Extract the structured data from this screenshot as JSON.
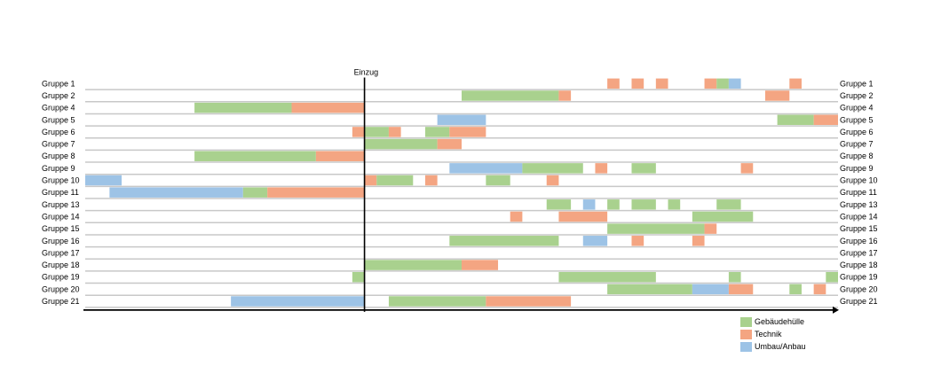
{
  "chart_data": {
    "type": "gantt",
    "marker_label": "Einzug",
    "categories": [
      "Gruppe 1",
      "Gruppe 2",
      "Gruppe 4",
      "Gruppe 5",
      "Gruppe 6",
      "Gruppe 7",
      "Gruppe 8",
      "Gruppe 9",
      "Gruppe 10",
      "Gruppe 11",
      "Gruppe 13",
      "Gruppe 14",
      "Gruppe 15",
      "Gruppe 16",
      "Gruppe 17",
      "Gruppe 18",
      "Gruppe 19",
      "Gruppe 20",
      "Gruppe 21"
    ],
    "marker_position": 23,
    "x_range": [
      0,
      62
    ],
    "legend": [
      {
        "key": "g",
        "label": "Gebäudehülle",
        "color": "#a9d18e"
      },
      {
        "key": "t",
        "label": "Technik",
        "color": "#f4a582"
      },
      {
        "key": "u",
        "label": "Umbau/Anbau",
        "color": "#9dc3e6"
      }
    ],
    "series": [
      {
        "group": "Gruppe 1",
        "segments": [
          [
            "t",
            43,
            44
          ],
          [
            "t",
            45,
            46
          ],
          [
            "t",
            47,
            48
          ],
          [
            "t",
            51,
            52
          ],
          [
            "g",
            52,
            53
          ],
          [
            "u",
            53,
            54
          ],
          [
            "t",
            58,
            59
          ]
        ]
      },
      {
        "group": "Gruppe 2",
        "segments": [
          [
            "g",
            31,
            39
          ],
          [
            "t",
            39,
            40
          ],
          [
            "t",
            56,
            58
          ]
        ]
      },
      {
        "group": "Gruppe 4",
        "segments": [
          [
            "g",
            9,
            17
          ],
          [
            "t",
            17,
            23
          ]
        ]
      },
      {
        "group": "Gruppe 5",
        "segments": [
          [
            "u",
            29,
            33
          ],
          [
            "g",
            57,
            60
          ],
          [
            "t",
            60,
            62
          ]
        ]
      },
      {
        "group": "Gruppe 6",
        "segments": [
          [
            "t",
            22,
            23
          ],
          [
            "g",
            23,
            25
          ],
          [
            "t",
            25,
            26
          ],
          [
            "g",
            28,
            30
          ],
          [
            "t",
            30,
            33
          ]
        ]
      },
      {
        "group": "Gruppe 7",
        "segments": [
          [
            "g",
            23,
            29
          ],
          [
            "t",
            29,
            31
          ]
        ]
      },
      {
        "group": "Gruppe 8",
        "segments": [
          [
            "g",
            9,
            19
          ],
          [
            "t",
            19,
            23
          ]
        ]
      },
      {
        "group": "Gruppe 9",
        "segments": [
          [
            "u",
            30,
            36
          ],
          [
            "g",
            36,
            41
          ],
          [
            "t",
            42,
            43
          ],
          [
            "g",
            45,
            47
          ],
          [
            "t",
            54,
            55
          ]
        ]
      },
      {
        "group": "Gruppe 10",
        "segments": [
          [
            "u",
            0,
            3
          ],
          [
            "t",
            23,
            24
          ],
          [
            "g",
            24,
            27
          ],
          [
            "t",
            28,
            29
          ],
          [
            "g",
            33,
            35
          ],
          [
            "t",
            38,
            39
          ]
        ]
      },
      {
        "group": "Gruppe 11",
        "segments": [
          [
            "u",
            2,
            13
          ],
          [
            "g",
            13,
            15
          ],
          [
            "t",
            15,
            23
          ]
        ]
      },
      {
        "group": "Gruppe 13",
        "segments": [
          [
            "g",
            38,
            40
          ],
          [
            "u",
            41,
            42
          ],
          [
            "g",
            43,
            44
          ],
          [
            "g",
            45,
            47
          ],
          [
            "g",
            48,
            49
          ],
          [
            "g",
            52,
            54
          ]
        ]
      },
      {
        "group": "Gruppe 14",
        "segments": [
          [
            "t",
            35,
            36
          ],
          [
            "t",
            39,
            43
          ],
          [
            "g",
            50,
            55
          ]
        ]
      },
      {
        "group": "Gruppe 15",
        "segments": [
          [
            "g",
            43,
            51
          ],
          [
            "t",
            51,
            52
          ]
        ]
      },
      {
        "group": "Gruppe 16",
        "segments": [
          [
            "g",
            30,
            39
          ],
          [
            "u",
            41,
            43
          ],
          [
            "t",
            45,
            46
          ],
          [
            "t",
            50,
            51
          ]
        ]
      },
      {
        "group": "Gruppe 17",
        "segments": []
      },
      {
        "group": "Gruppe 18",
        "segments": [
          [
            "g",
            23,
            31
          ],
          [
            "t",
            31,
            34
          ]
        ]
      },
      {
        "group": "Gruppe 19",
        "segments": [
          [
            "g",
            22,
            23
          ],
          [
            "g",
            39,
            47
          ],
          [
            "g",
            53,
            54
          ],
          [
            "g",
            61,
            62
          ]
        ]
      },
      {
        "group": "Gruppe 20",
        "segments": [
          [
            "g",
            43,
            50
          ],
          [
            "u",
            50,
            53
          ],
          [
            "t",
            53,
            55
          ],
          [
            "g",
            58,
            59
          ],
          [
            "t",
            60,
            61
          ]
        ]
      },
      {
        "group": "Gruppe 21",
        "segments": [
          [
            "u",
            12,
            23
          ],
          [
            "g",
            25,
            33
          ],
          [
            "t",
            33,
            40
          ]
        ]
      }
    ]
  }
}
